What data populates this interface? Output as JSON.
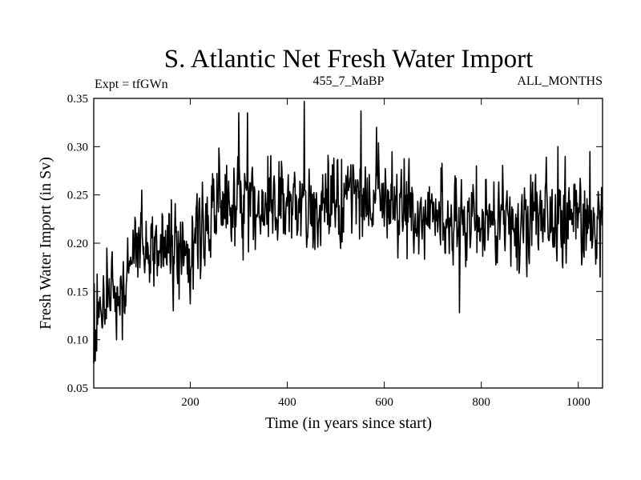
{
  "chart_data": {
    "type": "line",
    "title": "S. Atlantic Net Fresh Water Import",
    "subtitle_left": "Expt = tfGWn",
    "subtitle_center": "455_7_MaBP",
    "subtitle_right": "ALL_MONTHS",
    "xlabel": "Time (in years since start)",
    "ylabel": "Fresh Water Import (in Sv)",
    "xlim": [
      1,
      1050
    ],
    "ylim": [
      0.05,
      0.35
    ],
    "x_ticks": [
      200,
      400,
      600,
      800,
      1000
    ],
    "x_tick_labels": [
      "200",
      "400",
      "600",
      "800",
      "1000"
    ],
    "y_ticks": [
      0.05,
      0.1,
      0.15,
      0.2,
      0.25,
      0.3,
      0.35
    ],
    "y_tick_labels": [
      "0.05",
      "0.10",
      "0.15",
      "0.20",
      "0.25",
      "0.30",
      "0.35"
    ],
    "series": [
      {
        "name": "Net fresh water import",
        "color": "#000000",
        "anchors_x": [
          1,
          5,
          10,
          15,
          20,
          25,
          30,
          35,
          40,
          50,
          60,
          70,
          80,
          90,
          100,
          120,
          140,
          160,
          180,
          200,
          230,
          260,
          280,
          300,
          330,
          360,
          400,
          430,
          460,
          500,
          540,
          560,
          600,
          640,
          680,
          720,
          760,
          800,
          850,
          900,
          950,
          1000,
          1050
        ],
        "anchors_y": [
          0.092,
          0.098,
          0.118,
          0.128,
          0.132,
          0.138,
          0.143,
          0.14,
          0.138,
          0.143,
          0.155,
          0.168,
          0.185,
          0.19,
          0.192,
          0.19,
          0.192,
          0.2,
          0.2,
          0.2,
          0.215,
          0.235,
          0.238,
          0.24,
          0.24,
          0.24,
          0.238,
          0.242,
          0.238,
          0.235,
          0.25,
          0.252,
          0.235,
          0.23,
          0.225,
          0.222,
          0.22,
          0.222,
          0.225,
          0.225,
          0.228,
          0.23,
          0.225
        ],
        "noise_amplitude": 0.022,
        "peaks": [
          {
            "x": 2,
            "y": 0.158
          },
          {
            "x": 4,
            "y": 0.078
          },
          {
            "x": 8,
            "y": 0.168
          },
          {
            "x": 28,
            "y": 0.195
          },
          {
            "x": 48,
            "y": 0.1
          },
          {
            "x": 60,
            "y": 0.1
          },
          {
            "x": 100,
            "y": 0.255
          },
          {
            "x": 165,
            "y": 0.13
          },
          {
            "x": 300,
            "y": 0.335
          },
          {
            "x": 318,
            "y": 0.335
          },
          {
            "x": 360,
            "y": 0.29
          },
          {
            "x": 435,
            "y": 0.347
          },
          {
            "x": 552,
            "y": 0.337
          },
          {
            "x": 584,
            "y": 0.32
          },
          {
            "x": 755,
            "y": 0.128
          },
          {
            "x": 790,
            "y": 0.28
          },
          {
            "x": 958,
            "y": 0.3
          },
          {
            "x": 1024,
            "y": 0.295
          },
          {
            "x": 1045,
            "y": 0.165
          }
        ]
      }
    ]
  }
}
